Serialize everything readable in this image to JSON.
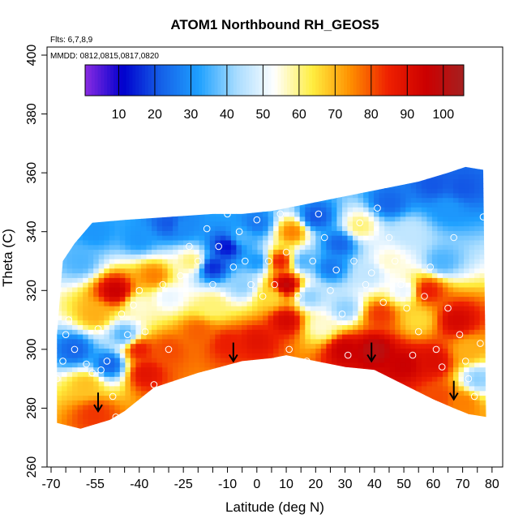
{
  "chart_data": {
    "type": "heatmap",
    "title": "ATOM1 Northbound RH_GEOS5",
    "annotations": [
      "Flts: 6,7,8,9",
      "MMDD: 0812,0815,0817,0820"
    ],
    "xlabel": "Latitude (deg N)",
    "ylabel": "Theta (C)",
    "xlim": [
      -70,
      85
    ],
    "ylim": [
      260,
      400
    ],
    "x_ticks": [
      -70,
      -55,
      -40,
      -25,
      -10,
      0,
      10,
      20,
      30,
      40,
      50,
      60,
      70,
      80
    ],
    "x_minor_ticks": [
      -65,
      -60,
      -50,
      -45,
      -35,
      -30,
      -20,
      -15,
      -5,
      5,
      15,
      25,
      35,
      45,
      55,
      65,
      75
    ],
    "y_ticks": [
      260,
      280,
      300,
      320,
      340,
      360,
      380,
      400
    ],
    "colorbar": {
      "min": 0,
      "max": 105,
      "ticks": [
        10,
        20,
        30,
        40,
        50,
        60,
        70,
        80,
        90,
        100
      ],
      "colors": [
        "#8a2be2",
        "#0000cd",
        "#1560e8",
        "#1ea0ff",
        "#a8dcff",
        "#ffffff",
        "#ffee40",
        "#ff9000",
        "#ee2000",
        "#cc0000",
        "#a52020"
      ]
    },
    "outline_top": [
      [
        -68,
        305
      ],
      [
        -66,
        330
      ],
      [
        -62,
        336
      ],
      [
        -56,
        343
      ],
      [
        -45,
        344
      ],
      [
        -30,
        345
      ],
      [
        -15,
        346
      ],
      [
        -5,
        346
      ],
      [
        5,
        347
      ],
      [
        15,
        349
      ],
      [
        25,
        351
      ],
      [
        35,
        353
      ],
      [
        45,
        355
      ],
      [
        55,
        357
      ],
      [
        65,
        360
      ],
      [
        71,
        362
      ],
      [
        77,
        361
      ]
    ],
    "outline_bottom": [
      [
        -68,
        275
      ],
      [
        -60,
        273
      ],
      [
        -50,
        276
      ],
      [
        -45,
        279
      ],
      [
        -35,
        287
      ],
      [
        -20,
        292
      ],
      [
        -5,
        296
      ],
      [
        5,
        297
      ],
      [
        10,
        298
      ],
      [
        20,
        296
      ],
      [
        30,
        294
      ],
      [
        40,
        293
      ],
      [
        50,
        288
      ],
      [
        60,
        283
      ],
      [
        67,
        280
      ],
      [
        72,
        278
      ],
      [
        78,
        277
      ]
    ],
    "rh_field": [
      {
        "x": -62,
        "y": 300,
        "v": 22
      },
      {
        "x": -58,
        "y": 288,
        "v": 68
      },
      {
        "x": -55,
        "y": 278,
        "v": 82
      },
      {
        "x": -55,
        "y": 312,
        "v": 70
      },
      {
        "x": -48,
        "y": 320,
        "v": 95
      },
      {
        "x": -35,
        "y": 325,
        "v": 75
      },
      {
        "x": -50,
        "y": 295,
        "v": 22
      },
      {
        "x": -45,
        "y": 305,
        "v": 35
      },
      {
        "x": -40,
        "y": 300,
        "v": 85
      },
      {
        "x": -38,
        "y": 292,
        "v": 88
      },
      {
        "x": -30,
        "y": 300,
        "v": 80
      },
      {
        "x": -40,
        "y": 315,
        "v": 55
      },
      {
        "x": -60,
        "y": 330,
        "v": 35
      },
      {
        "x": -55,
        "y": 340,
        "v": 30
      },
      {
        "x": -40,
        "y": 338,
        "v": 30
      },
      {
        "x": -25,
        "y": 342,
        "v": 28
      },
      {
        "x": -22,
        "y": 330,
        "v": 60
      },
      {
        "x": -30,
        "y": 318,
        "v": 50
      },
      {
        "x": -15,
        "y": 328,
        "v": 15
      },
      {
        "x": -10,
        "y": 335,
        "v": 12
      },
      {
        "x": -5,
        "y": 322,
        "v": 40
      },
      {
        "x": -15,
        "y": 315,
        "v": 60
      },
      {
        "x": -20,
        "y": 306,
        "v": 78
      },
      {
        "x": -10,
        "y": 302,
        "v": 85
      },
      {
        "x": 0,
        "y": 303,
        "v": 88
      },
      {
        "x": -5,
        "y": 338,
        "v": 35
      },
      {
        "x": 0,
        "y": 330,
        "v": 30
      },
      {
        "x": 5,
        "y": 318,
        "v": 65
      },
      {
        "x": 8,
        "y": 330,
        "v": 85
      },
      {
        "x": 10,
        "y": 322,
        "v": 98
      },
      {
        "x": 10,
        "y": 310,
        "v": 92
      },
      {
        "x": 12,
        "y": 340,
        "v": 75
      },
      {
        "x": 16,
        "y": 330,
        "v": 35
      },
      {
        "x": 18,
        "y": 318,
        "v": 40
      },
      {
        "x": 22,
        "y": 308,
        "v": 55
      },
      {
        "x": 25,
        "y": 328,
        "v": 25
      },
      {
        "x": 28,
        "y": 336,
        "v": 22
      },
      {
        "x": 30,
        "y": 314,
        "v": 40
      },
      {
        "x": 35,
        "y": 342,
        "v": 60
      },
      {
        "x": 38,
        "y": 326,
        "v": 45
      },
      {
        "x": 30,
        "y": 300,
        "v": 95
      },
      {
        "x": 40,
        "y": 300,
        "v": 100
      },
      {
        "x": 45,
        "y": 330,
        "v": 55
      },
      {
        "x": 42,
        "y": 312,
        "v": 82
      },
      {
        "x": 50,
        "y": 320,
        "v": 50
      },
      {
        "x": 52,
        "y": 340,
        "v": 45
      },
      {
        "x": 55,
        "y": 310,
        "v": 65
      },
      {
        "x": 50,
        "y": 295,
        "v": 95
      },
      {
        "x": 60,
        "y": 296,
        "v": 90
      },
      {
        "x": 58,
        "y": 320,
        "v": 85
      },
      {
        "x": 63,
        "y": 330,
        "v": 35
      },
      {
        "x": 65,
        "y": 348,
        "v": 30
      },
      {
        "x": 70,
        "y": 355,
        "v": 20
      },
      {
        "x": 68,
        "y": 310,
        "v": 92
      },
      {
        "x": 72,
        "y": 300,
        "v": 70
      },
      {
        "x": 75,
        "y": 290,
        "v": 40
      },
      {
        "x": 70,
        "y": 282,
        "v": 75
      },
      {
        "x": 62,
        "y": 284,
        "v": 80
      },
      {
        "x": 20,
        "y": 345,
        "v": 20
      },
      {
        "x": 0,
        "y": 343,
        "v": 25
      },
      {
        "x": -30,
        "y": 343,
        "v": 20
      },
      {
        "x": 45,
        "y": 350,
        "v": 22
      },
      {
        "x": 60,
        "y": 356,
        "v": 20
      }
    ],
    "samples": [
      [
        -68,
        290
      ],
      [
        -66,
        296
      ],
      [
        -65,
        305
      ],
      [
        -64,
        310
      ],
      [
        -62,
        300
      ],
      [
        -58,
        295
      ],
      [
        -56,
        292
      ],
      [
        -54,
        307
      ],
      [
        -53,
        293
      ],
      [
        -51,
        296
      ],
      [
        -49,
        284
      ],
      [
        -48,
        277
      ],
      [
        -46,
        312
      ],
      [
        -44,
        305
      ],
      [
        -42,
        315
      ],
      [
        -40,
        320
      ],
      [
        -38,
        306
      ],
      [
        -35,
        288
      ],
      [
        -32,
        322
      ],
      [
        -30,
        300
      ],
      [
        -26,
        325
      ],
      [
        -23,
        335
      ],
      [
        -20,
        330
      ],
      [
        -17,
        341
      ],
      [
        -15,
        322
      ],
      [
        -13,
        335
      ],
      [
        -10,
        346
      ],
      [
        -8,
        328
      ],
      [
        -6,
        340
      ],
      [
        -4,
        330
      ],
      [
        -2,
        322
      ],
      [
        0,
        344
      ],
      [
        2,
        318
      ],
      [
        4,
        330
      ],
      [
        6,
        322
      ],
      [
        8,
        346
      ],
      [
        10,
        333
      ],
      [
        11,
        300
      ],
      [
        14,
        318
      ],
      [
        17,
        296
      ],
      [
        19,
        330
      ],
      [
        21,
        346
      ],
      [
        23,
        338
      ],
      [
        25,
        320
      ],
      [
        27,
        327
      ],
      [
        29,
        312
      ],
      [
        31,
        298
      ],
      [
        33,
        330
      ],
      [
        35,
        343
      ],
      [
        37,
        322
      ],
      [
        39,
        326
      ],
      [
        41,
        348
      ],
      [
        43,
        316
      ],
      [
        45,
        338
      ],
      [
        47,
        330
      ],
      [
        49,
        322
      ],
      [
        51,
        314
      ],
      [
        53,
        298
      ],
      [
        55,
        306
      ],
      [
        57,
        318
      ],
      [
        59,
        328
      ],
      [
        61,
        300
      ],
      [
        63,
        294
      ],
      [
        65,
        314
      ],
      [
        67,
        338
      ],
      [
        69,
        305
      ],
      [
        71,
        296
      ],
      [
        72,
        290
      ],
      [
        74,
        284
      ],
      [
        76,
        302
      ],
      [
        77,
        345
      ]
    ],
    "arrows": [
      [
        -54,
        282
      ],
      [
        -8,
        299
      ],
      [
        39,
        299
      ],
      [
        67,
        286
      ]
    ]
  }
}
